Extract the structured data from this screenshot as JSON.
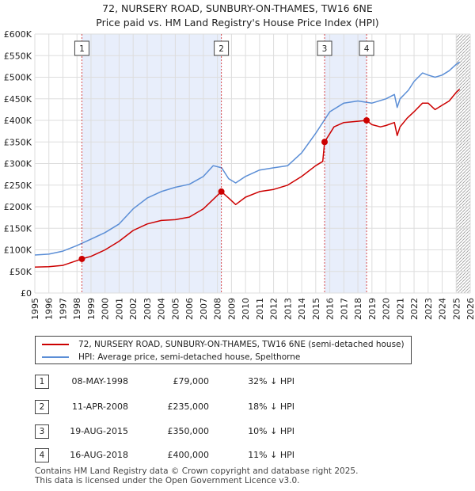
{
  "title": "72, NURSERY ROAD, SUNBURY-ON-THAMES, TW16 6NE",
  "subtitle": "Price paid vs. HM Land Registry's House Price Index (HPI)",
  "chart_data": {
    "type": "line",
    "xlim": [
      1995,
      2026
    ],
    "ylim": [
      0,
      600000
    ],
    "x_ticks": [
      "1995",
      "1996",
      "1997",
      "1998",
      "1999",
      "2000",
      "2001",
      "2002",
      "2003",
      "2004",
      "2005",
      "2006",
      "2007",
      "2008",
      "2009",
      "2010",
      "2011",
      "2012",
      "2013",
      "2014",
      "2015",
      "2016",
      "2017",
      "2018",
      "2019",
      "2020",
      "2021",
      "2022",
      "2023",
      "2024",
      "2025",
      "2026"
    ],
    "y_ticks": [
      {
        "value": 0,
        "label": "£0"
      },
      {
        "value": 50000,
        "label": "£50K"
      },
      {
        "value": 100000,
        "label": "£100K"
      },
      {
        "value": 150000,
        "label": "£150K"
      },
      {
        "value": 200000,
        "label": "£200K"
      },
      {
        "value": 250000,
        "label": "£250K"
      },
      {
        "value": 300000,
        "label": "£300K"
      },
      {
        "value": 350000,
        "label": "£350K"
      },
      {
        "value": 400000,
        "label": "£400K"
      },
      {
        "value": 450000,
        "label": "£450K"
      },
      {
        "value": 500000,
        "label": "£500K"
      },
      {
        "value": 550000,
        "label": "£550K"
      },
      {
        "value": 600000,
        "label": "£600K"
      }
    ],
    "grid": true,
    "shaded_ranges": [
      [
        1998.35,
        2008.28
      ],
      [
        2015.63,
        2018.62
      ]
    ],
    "hatched_from": 2025.0,
    "series": [
      {
        "name": "72, NURSERY ROAD, SUNBURY-ON-THAMES, TW16 6NE (semi-detached house)",
        "color": "#cc0000",
        "points": [
          [
            1995.0,
            60000
          ],
          [
            1996.0,
            61000
          ],
          [
            1997.0,
            64000
          ],
          [
            1998.35,
            79000
          ],
          [
            1999.0,
            85000
          ],
          [
            2000.0,
            100000
          ],
          [
            2001.0,
            120000
          ],
          [
            2002.0,
            145000
          ],
          [
            2003.0,
            160000
          ],
          [
            2004.0,
            168000
          ],
          [
            2005.0,
            170000
          ],
          [
            2006.0,
            176000
          ],
          [
            2007.0,
            195000
          ],
          [
            2007.8,
            220000
          ],
          [
            2008.28,
            235000
          ],
          [
            2008.8,
            220000
          ],
          [
            2009.3,
            205000
          ],
          [
            2010.0,
            222000
          ],
          [
            2011.0,
            235000
          ],
          [
            2012.0,
            240000
          ],
          [
            2013.0,
            250000
          ],
          [
            2014.0,
            270000
          ],
          [
            2015.0,
            295000
          ],
          [
            2015.5,
            305000
          ],
          [
            2015.63,
            350000
          ],
          [
            2016.3,
            385000
          ],
          [
            2017.0,
            395000
          ],
          [
            2018.0,
            398000
          ],
          [
            2018.62,
            400000
          ],
          [
            2019.0,
            390000
          ],
          [
            2019.6,
            385000
          ],
          [
            2020.0,
            388000
          ],
          [
            2020.6,
            395000
          ],
          [
            2020.8,
            365000
          ],
          [
            2021.0,
            385000
          ],
          [
            2021.5,
            405000
          ],
          [
            2022.0,
            420000
          ],
          [
            2022.6,
            440000
          ],
          [
            2023.0,
            440000
          ],
          [
            2023.5,
            425000
          ],
          [
            2024.0,
            435000
          ],
          [
            2024.5,
            445000
          ],
          [
            2025.0,
            465000
          ],
          [
            2025.25,
            472000
          ]
        ]
      },
      {
        "name": "HPI: Average price, semi-detached house, Spelthorne",
        "color": "#5b8ed6",
        "points": [
          [
            1995.0,
            88000
          ],
          [
            1996.0,
            90000
          ],
          [
            1997.0,
            97000
          ],
          [
            1998.0,
            110000
          ],
          [
            1999.0,
            125000
          ],
          [
            2000.0,
            140000
          ],
          [
            2001.0,
            160000
          ],
          [
            2002.0,
            195000
          ],
          [
            2003.0,
            220000
          ],
          [
            2004.0,
            235000
          ],
          [
            2005.0,
            245000
          ],
          [
            2006.0,
            252000
          ],
          [
            2007.0,
            270000
          ],
          [
            2007.7,
            295000
          ],
          [
            2008.3,
            290000
          ],
          [
            2008.8,
            265000
          ],
          [
            2009.3,
            255000
          ],
          [
            2010.0,
            270000
          ],
          [
            2011.0,
            285000
          ],
          [
            2012.0,
            290000
          ],
          [
            2013.0,
            295000
          ],
          [
            2014.0,
            325000
          ],
          [
            2015.0,
            370000
          ],
          [
            2016.0,
            420000
          ],
          [
            2017.0,
            440000
          ],
          [
            2018.0,
            445000
          ],
          [
            2019.0,
            440000
          ],
          [
            2020.0,
            450000
          ],
          [
            2020.6,
            460000
          ],
          [
            2020.8,
            430000
          ],
          [
            2021.0,
            450000
          ],
          [
            2021.6,
            470000
          ],
          [
            2022.0,
            490000
          ],
          [
            2022.6,
            510000
          ],
          [
            2023.0,
            505000
          ],
          [
            2023.5,
            500000
          ],
          [
            2024.0,
            505000
          ],
          [
            2024.5,
            515000
          ],
          [
            2025.0,
            530000
          ],
          [
            2025.25,
            535000
          ]
        ]
      }
    ],
    "sales": [
      {
        "marker": "1",
        "x": 1998.35,
        "price": 79000
      },
      {
        "marker": "2",
        "x": 2008.28,
        "price": 235000
      },
      {
        "marker": "3",
        "x": 2015.63,
        "price": 350000
      },
      {
        "marker": "4",
        "x": 2018.62,
        "price": 400000
      }
    ]
  },
  "legend": {
    "property": "72, NURSERY ROAD, SUNBURY-ON-THAMES, TW16 6NE (semi-detached house)",
    "hpi": "HPI: Average price, semi-detached house, Spelthorne"
  },
  "transactions": [
    {
      "marker": "1",
      "date": "08-MAY-1998",
      "price": "£79,000",
      "delta": "32% ↓ HPI"
    },
    {
      "marker": "2",
      "date": "11-APR-2008",
      "price": "£235,000",
      "delta": "18% ↓ HPI"
    },
    {
      "marker": "3",
      "date": "19-AUG-2015",
      "price": "£350,000",
      "delta": "10% ↓ HPI"
    },
    {
      "marker": "4",
      "date": "16-AUG-2018",
      "price": "£400,000",
      "delta": "11% ↓ HPI"
    }
  ],
  "footer": {
    "line1": "Contains HM Land Registry data © Crown copyright and database right 2025.",
    "line2": "This data is licensed under the Open Government Licence v3.0."
  }
}
